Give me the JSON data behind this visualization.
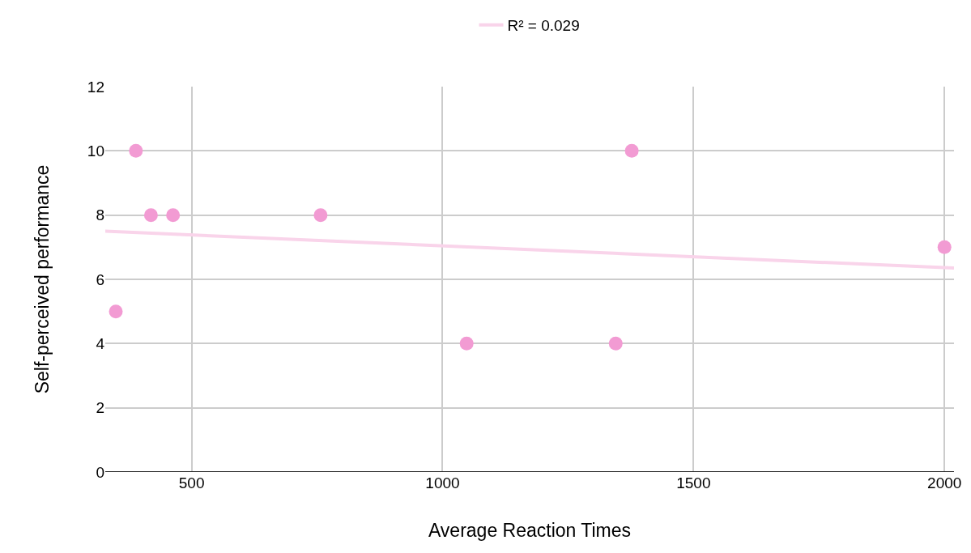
{
  "chart_data": {
    "type": "scatter",
    "xlabel": "Average Reaction Times",
    "ylabel": "Self-perceived performance",
    "series": [
      {
        "color": "#f29bd3",
        "marker": "circle",
        "x": [
          349,
          389,
          419,
          463,
          757,
          1048,
          1345,
          1377,
          2000
        ],
        "values": [
          5,
          10,
          8,
          8,
          8,
          4,
          4,
          10,
          7
        ]
      },
      {
        "type": "line",
        "name": "R² = 0.029",
        "color": "#f9d4ea",
        "marker": "none",
        "x": [
          328,
          2019
        ],
        "values": [
          7.5,
          6.35
        ]
      }
    ],
    "xlim": [
      328,
      2019
    ],
    "xticks": [
      500,
      1000,
      1500,
      2000
    ],
    "ylim": [
      0,
      12
    ],
    "yticks": [
      0,
      2,
      4,
      6,
      8,
      10,
      12
    ],
    "grid": true,
    "legend": "top"
  }
}
